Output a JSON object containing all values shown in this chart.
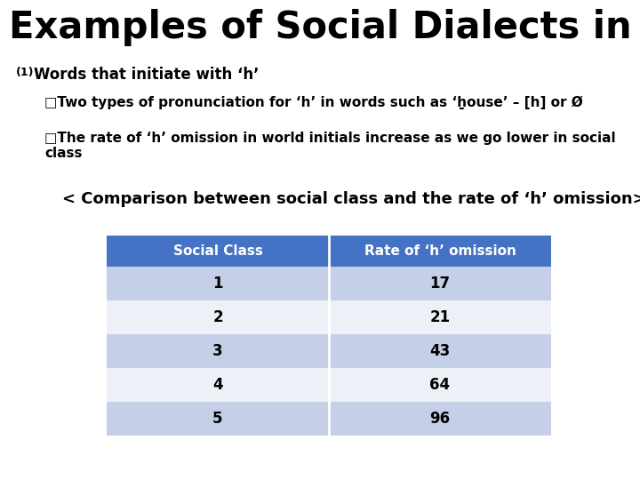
{
  "title": "Examples of Social Dialects in England",
  "subtitle_num": "(1)",
  "subtitle_text": "  Words that initiate with ‘h’",
  "bullet1": "□Two types of pronunciation for ‘h’ in words such as ‘ẖouse’ – [h] or Ø",
  "bullet2": "□The rate of ‘h’ omission in world initials increase as we go lower in social class",
  "comparison_label": "< Comparison between social class and the rate of ‘h’ omission>",
  "table_headers": [
    "Social Class",
    "Rate of ‘h’ omission"
  ],
  "table_data": [
    [
      "1",
      "17"
    ],
    [
      "2",
      "21"
    ],
    [
      "3",
      "43"
    ],
    [
      "4",
      "64"
    ],
    [
      "5",
      "96"
    ]
  ],
  "header_bg": "#4472C4",
  "header_text": "#ffffff",
  "row_bg_odd": "#c5cfe8",
  "row_bg_even": "#eef0f7",
  "bg_color": "#ffffff",
  "title_fontsize": 30,
  "subtitle_fontsize": 12,
  "bullet_fontsize": 11,
  "comparison_fontsize": 13,
  "table_header_fontsize": 11,
  "table_data_fontsize": 12
}
